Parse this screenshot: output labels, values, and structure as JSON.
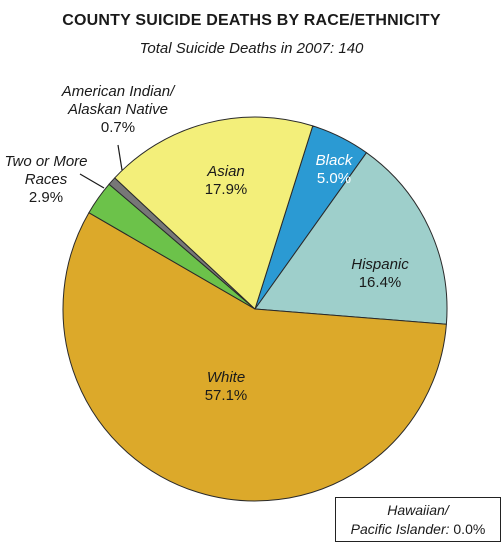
{
  "chart_data": {
    "type": "pie",
    "title": "COUNTY SUICIDE DEATHS BY RACE/ETHNICITY",
    "subtitle": "Total Suicide Deaths in 2007: 140",
    "slices": [
      {
        "name": "Black",
        "value": 5.0,
        "label": "5.0%",
        "color": "#2b9ad3"
      },
      {
        "name": "Hispanic",
        "value": 16.4,
        "label": "16.4%",
        "color": "#9ecfcb"
      },
      {
        "name": "White",
        "value": 57.1,
        "label": "57.1%",
        "color": "#dca92a"
      },
      {
        "name": "Two or More Races",
        "value": 2.9,
        "label": "2.9%",
        "color": "#6cc24a"
      },
      {
        "name": "American Indian/ Alaskan Native",
        "value": 0.7,
        "label": "0.7%",
        "color": "#777777"
      },
      {
        "name": "Asian",
        "value": 17.9,
        "label": "17.9%",
        "color": "#f3ef7a"
      }
    ],
    "note": {
      "name": "Hawaiian/ Pacific Islander",
      "value": 0.0,
      "label": "0.0%"
    },
    "legend": "none"
  }
}
